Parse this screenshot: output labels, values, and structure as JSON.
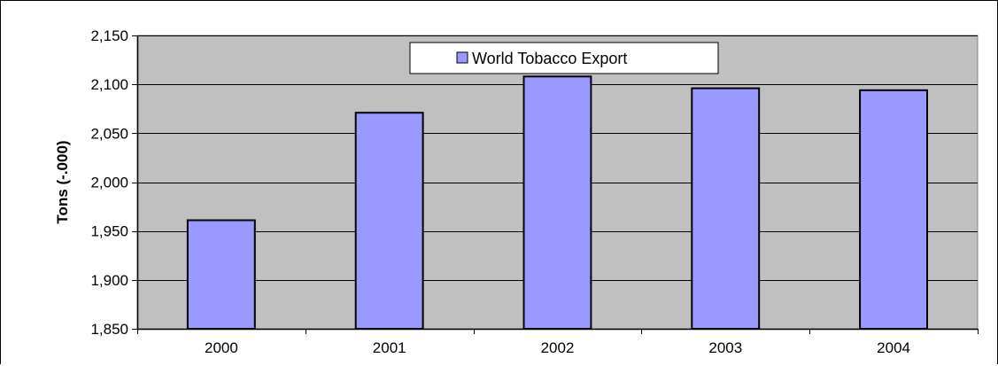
{
  "chart_data": {
    "type": "bar",
    "title": "",
    "xlabel": "",
    "ylabel": "Tons (-.000)",
    "categories": [
      "2000",
      "2001",
      "2002",
      "2003",
      "2004"
    ],
    "series": [
      {
        "name": "World Tobacco Export",
        "values": [
          1961,
          2071,
          2108,
          2096,
          2094
        ],
        "color": "#9999ff"
      }
    ],
    "ylim": [
      1850,
      2150
    ],
    "yticks": [
      1850,
      1900,
      1950,
      2000,
      2050,
      2100,
      2150
    ],
    "ytick_labels": [
      "1,850",
      "1,900",
      "1,950",
      "2,000",
      "2,050",
      "2,100",
      "2,150"
    ],
    "grid": true,
    "legend": "top-center",
    "plot_background": "#c0c0c0",
    "bar_edge_color": "#000000"
  }
}
